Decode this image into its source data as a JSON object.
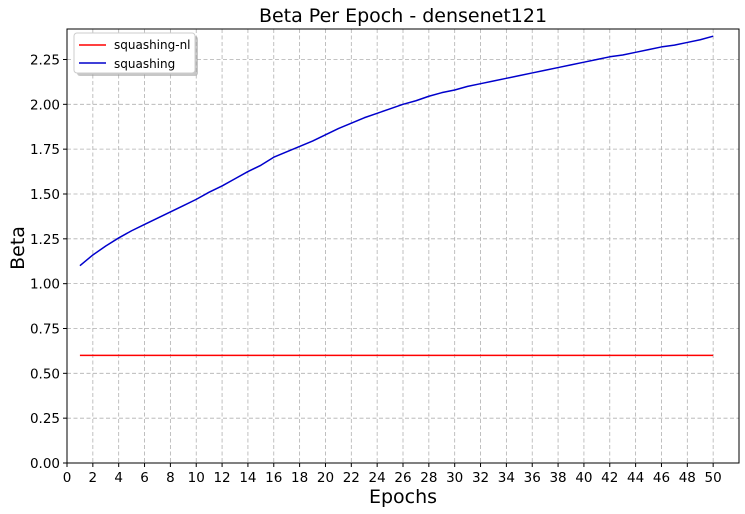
{
  "chart_data": {
    "type": "line",
    "title": "Beta Per Epoch - densenet121",
    "xlabel": "Epochs",
    "ylabel": "Beta",
    "xlim": [
      0,
      52
    ],
    "ylim": [
      0,
      2.42
    ],
    "x_ticks": [
      0,
      2,
      4,
      6,
      8,
      10,
      12,
      14,
      16,
      18,
      20,
      22,
      24,
      26,
      28,
      30,
      32,
      34,
      36,
      38,
      40,
      42,
      44,
      46,
      48,
      50
    ],
    "y_ticks": [
      "0.00",
      "0.25",
      "0.50",
      "0.75",
      "1.00",
      "1.25",
      "1.50",
      "1.75",
      "2.00",
      "2.25"
    ],
    "grid": true,
    "legend_position": "top-left",
    "x": [
      1,
      2,
      3,
      4,
      5,
      6,
      7,
      8,
      9,
      10,
      11,
      12,
      13,
      14,
      15,
      16,
      17,
      18,
      19,
      20,
      21,
      22,
      23,
      24,
      25,
      26,
      27,
      28,
      29,
      30,
      31,
      32,
      33,
      34,
      35,
      36,
      37,
      38,
      39,
      40,
      41,
      42,
      43,
      44,
      45,
      46,
      47,
      48,
      49,
      50
    ],
    "series": [
      {
        "name": "squashing-nl",
        "color": "#ff0000",
        "values": [
          0.6,
          0.6,
          0.6,
          0.6,
          0.6,
          0.6,
          0.6,
          0.6,
          0.6,
          0.6,
          0.6,
          0.6,
          0.6,
          0.6,
          0.6,
          0.6,
          0.6,
          0.6,
          0.6,
          0.6,
          0.6,
          0.6,
          0.6,
          0.6,
          0.6,
          0.6,
          0.6,
          0.6,
          0.6,
          0.6,
          0.6,
          0.6,
          0.6,
          0.6,
          0.6,
          0.6,
          0.6,
          0.6,
          0.6,
          0.6,
          0.6,
          0.6,
          0.6,
          0.6,
          0.6,
          0.6,
          0.6,
          0.6,
          0.6,
          0.6
        ]
      },
      {
        "name": "squashing",
        "color": "#0000cc",
        "values": [
          1.1,
          1.16,
          1.21,
          1.255,
          1.295,
          1.33,
          1.365,
          1.4,
          1.435,
          1.47,
          1.51,
          1.545,
          1.585,
          1.625,
          1.66,
          1.705,
          1.735,
          1.765,
          1.795,
          1.83,
          1.865,
          1.895,
          1.925,
          1.95,
          1.975,
          2.0,
          2.02,
          2.045,
          2.065,
          2.08,
          2.1,
          2.115,
          2.13,
          2.145,
          2.16,
          2.175,
          2.19,
          2.205,
          2.22,
          2.235,
          2.25,
          2.265,
          2.275,
          2.29,
          2.305,
          2.32,
          2.33,
          2.345,
          2.36,
          2.38
        ]
      }
    ]
  }
}
